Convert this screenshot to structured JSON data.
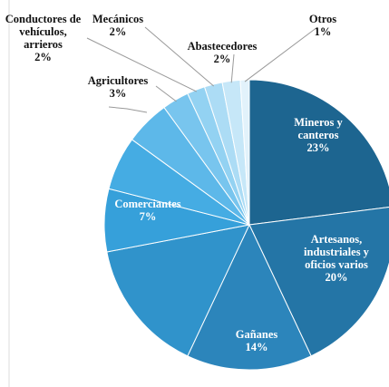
{
  "chart_data": {
    "type": "pie",
    "categories": [
      "Mineros y canteros",
      "Artesanos, industriales y oficios varios",
      "Gañanes",
      null,
      "Comerciantes",
      null,
      null,
      "Agricultores",
      "Conductores de vehículos, arrieros",
      "Mecánicos",
      "Abastecedores",
      "Otros"
    ],
    "values": [
      23,
      20,
      14,
      15,
      7,
      6,
      5,
      3,
      2,
      2,
      2,
      1
    ],
    "value_labels": [
      "23%",
      "20%",
      "14%",
      null,
      "7%",
      null,
      null,
      "3%",
      "2%",
      "2%",
      "2%",
      "1%"
    ],
    "colors": [
      "#1d6590",
      "#2475a6",
      "#2c85bb",
      "#3093cb",
      "#36a0da",
      "#45ace3",
      "#5db8e9",
      "#78c5ee",
      "#93d2f2",
      "#acdcf5",
      "#c6e7f8",
      "#e2f2fb"
    ]
  }
}
